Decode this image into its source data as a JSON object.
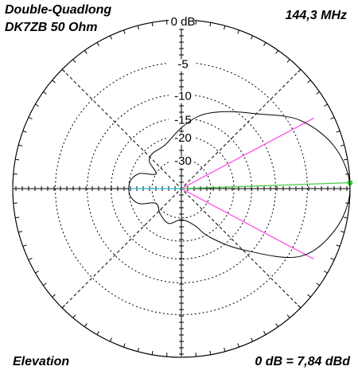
{
  "chart_data": {
    "type": "polar",
    "title": "Double-Quadlong",
    "subtitle": "DK7ZB 50 Ohm",
    "frequency": "144,3 MHz",
    "plane": "Elevation",
    "reference": "0 dB = 7,84 dBd",
    "scale": "arrl",
    "rticks": [
      {
        "value": 0,
        "label": "0 dB"
      },
      -5,
      -10,
      -15,
      -20,
      -30
    ],
    "series": [
      {
        "color": "#000000",
        "angles": [
          0,
          15,
          30,
          45,
          60,
          75,
          90,
          110,
          130,
          140,
          150,
          160,
          170,
          180,
          190,
          200,
          210,
          230,
          250,
          270,
          290,
          300,
          315,
          330,
          345
        ],
        "values": [
          0,
          -1,
          -3.6,
          -8,
          -11,
          -13.7,
          -17.5,
          -22,
          -22.5,
          -24,
          -30,
          -23,
          -20.5,
          -20,
          -20.5,
          -23,
          -30,
          -28,
          -26,
          -29,
          -25,
          -19,
          -11.5,
          -3.7,
          -1
        ]
      }
    ],
    "half_power_angles": [
      28,
      -28
    ],
    "half_power_color": "#ff44ee",
    "max_angle": 2,
    "max_color": "#44cc44",
    "back_angle": 180,
    "back_color": "#22bbcc"
  }
}
